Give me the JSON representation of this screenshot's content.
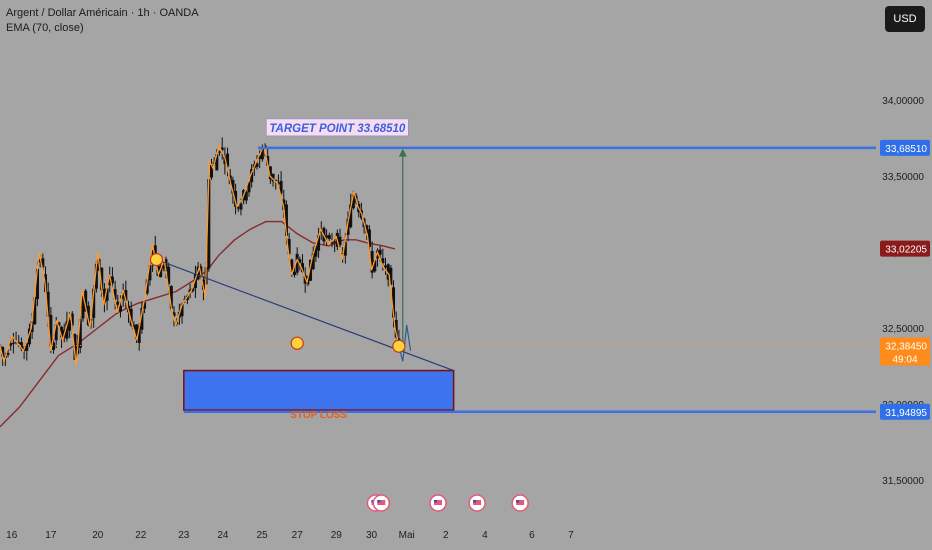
{
  "legend": {
    "symbol_line": "Argent / Dollar Américain · 1h · OANDA",
    "indicator_line": "EMA (70, close)"
  },
  "currency_button": "USD",
  "colors": {
    "background": "#a5a5a5",
    "candle": "#111111",
    "price_line": "#ff9a2e",
    "ema": "#8a2a2a",
    "trendline": "#2c3f7a",
    "level_line": "#3a6fe8",
    "stop_box_fill": "#3e73ee",
    "stop_box_border": "#7a1010",
    "stop_loss_text": "#e0611c",
    "marker_fill": "#ffd23a",
    "marker_stroke": "#c03a1a",
    "target_arrow": "#3b6f4e",
    "target_label_bg": "#f6dcef",
    "target_label_text": "#3d5fe0",
    "tag_target": "#2f6fe8",
    "tag_ema": "#8b1a1a",
    "tag_price": "#ff8c1a",
    "tag_stop": "#2f6fe8"
  },
  "chart_data": {
    "type": "candlestick",
    "title": "Argent / Dollar Américain · 1h · OANDA",
    "indicator": "EMA (70, close)",
    "y_axis": {
      "range": [
        31.25,
        34.25
      ],
      "ticks": [
        "34,00000",
        "33,50000",
        "33,00000",
        "32,50000",
        "32,00000",
        "31,50000"
      ],
      "tick_values": [
        34.0,
        33.5,
        33.0,
        32.5,
        32.0,
        31.5
      ]
    },
    "x_axis": {
      "range": [
        15.7,
        38.1
      ],
      "ticks": [
        {
          "label": "16",
          "x": 16
        },
        {
          "label": "17",
          "x": 17
        },
        {
          "label": "20",
          "x": 18.2
        },
        {
          "label": "22",
          "x": 19.3
        },
        {
          "label": "23",
          "x": 20.4
        },
        {
          "label": "24",
          "x": 21.4
        },
        {
          "label": "25",
          "x": 22.4
        },
        {
          "label": "27",
          "x": 23.3
        },
        {
          "label": "29",
          "x": 24.3
        },
        {
          "label": "30",
          "x": 25.2
        },
        {
          "label": "Mai",
          "x": 26.1
        },
        {
          "label": "2",
          "x": 27.1
        },
        {
          "label": "4",
          "x": 28.1
        },
        {
          "label": "6",
          "x": 29.3
        },
        {
          "label": "7",
          "x": 30.3
        }
      ]
    },
    "price_path": [
      [
        15.7,
        32.38
      ],
      [
        15.8,
        32.28
      ],
      [
        16.0,
        32.45
      ],
      [
        16.3,
        32.35
      ],
      [
        16.5,
        32.5
      ],
      [
        16.7,
        33.0
      ],
      [
        16.85,
        32.8
      ],
      [
        17.0,
        32.35
      ],
      [
        17.15,
        32.55
      ],
      [
        17.3,
        32.42
      ],
      [
        17.5,
        32.6
      ],
      [
        17.65,
        32.25
      ],
      [
        17.8,
        32.75
      ],
      [
        18.0,
        32.5
      ],
      [
        18.2,
        33.0
      ],
      [
        18.35,
        32.65
      ],
      [
        18.5,
        32.85
      ],
      [
        18.7,
        32.6
      ],
      [
        18.85,
        32.75
      ],
      [
        19.05,
        32.55
      ],
      [
        19.2,
        32.42
      ],
      [
        19.4,
        32.7
      ],
      [
        19.6,
        33.05
      ],
      [
        19.75,
        32.85
      ],
      [
        19.9,
        32.95
      ],
      [
        20.1,
        32.6
      ],
      [
        20.2,
        32.52
      ],
      [
        20.35,
        32.65
      ],
      [
        20.6,
        32.75
      ],
      [
        20.8,
        32.9
      ],
      [
        20.95,
        32.7
      ],
      [
        21.05,
        33.6
      ],
      [
        21.15,
        33.55
      ],
      [
        21.3,
        33.7
      ],
      [
        21.45,
        33.62
      ],
      [
        21.6,
        33.45
      ],
      [
        21.75,
        33.3
      ],
      [
        21.9,
        33.35
      ],
      [
        22.1,
        33.5
      ],
      [
        22.3,
        33.62
      ],
      [
        22.45,
        33.7
      ],
      [
        22.6,
        33.5
      ],
      [
        22.8,
        33.45
      ],
      [
        22.95,
        33.3
      ],
      [
        23.05,
        33.05
      ],
      [
        23.15,
        32.85
      ],
      [
        23.3,
        32.95
      ],
      [
        23.4,
        32.9
      ],
      [
        23.55,
        32.8
      ],
      [
        23.7,
        32.98
      ],
      [
        23.9,
        33.15
      ],
      [
        24.1,
        33.05
      ],
      [
        24.3,
        33.1
      ],
      [
        24.45,
        32.95
      ],
      [
        24.6,
        33.2
      ],
      [
        24.75,
        33.4
      ],
      [
        24.85,
        33.3
      ],
      [
        24.95,
        33.25
      ],
      [
        25.1,
        33.1
      ],
      [
        25.2,
        32.88
      ],
      [
        25.35,
        33.0
      ],
      [
        25.5,
        32.9
      ],
      [
        25.65,
        32.85
      ],
      [
        25.8,
        32.5
      ],
      [
        25.9,
        32.38
      ]
    ],
    "ema_path": [
      [
        15.7,
        31.85
      ],
      [
        16.2,
        31.98
      ],
      [
        16.7,
        32.15
      ],
      [
        17.2,
        32.32
      ],
      [
        17.7,
        32.4
      ],
      [
        18.2,
        32.5
      ],
      [
        18.7,
        32.6
      ],
      [
        19.2,
        32.66
      ],
      [
        19.7,
        32.7
      ],
      [
        20.2,
        32.74
      ],
      [
        20.7,
        32.82
      ],
      [
        21.0,
        32.88
      ],
      [
        21.3,
        32.98
      ],
      [
        21.7,
        33.08
      ],
      [
        22.1,
        33.15
      ],
      [
        22.5,
        33.2
      ],
      [
        22.9,
        33.2
      ],
      [
        23.3,
        33.12
      ],
      [
        23.7,
        33.06
      ],
      [
        24.1,
        33.04
      ],
      [
        24.5,
        33.08
      ],
      [
        24.8,
        33.08
      ],
      [
        25.1,
        33.06
      ],
      [
        25.5,
        33.04
      ],
      [
        25.8,
        33.02
      ]
    ],
    "price_tags": [
      {
        "label": "33,68510",
        "value": 33.6851,
        "kind": "target"
      },
      {
        "label": "33,02205",
        "value": 33.02205,
        "kind": "ema"
      },
      {
        "label": "32,38450",
        "sub_label": "49:04",
        "value": 32.3845,
        "kind": "price"
      },
      {
        "label": "31,94895",
        "value": 31.94895,
        "kind": "stop"
      }
    ],
    "annotations": {
      "target_label": "TARGET POINT 33.68510",
      "target_value": 33.6851,
      "stop_loss_label": "STOP LOSS",
      "stop_value": 31.94895,
      "stop_box": {
        "x0": 20.4,
        "x1": 27.3,
        "y_top": 32.22,
        "y_bottom": 31.96
      },
      "trendline": [
        [
          19.7,
          32.95
        ],
        [
          27.3,
          32.22
        ]
      ],
      "target_line_x": [
        22.3,
        30.3
      ],
      "target_arrow": {
        "x": 26.0,
        "from": 32.38,
        "to": 33.68
      },
      "projection": [
        [
          25.9,
          32.38
        ],
        [
          26.0,
          32.28
        ],
        [
          26.1,
          32.52
        ],
        [
          26.2,
          32.35
        ]
      ],
      "markers": [
        [
          19.7,
          32.95
        ],
        [
          23.3,
          32.4
        ],
        [
          25.9,
          32.38
        ]
      ],
      "event_icons": [
        25.3,
        25.45,
        26.9,
        27.9,
        29.0
      ]
    }
  }
}
